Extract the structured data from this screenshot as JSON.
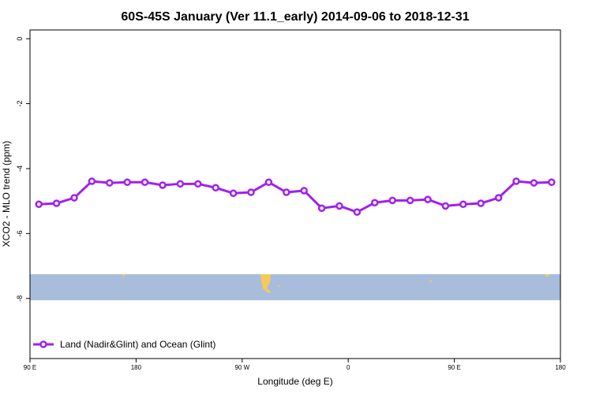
{
  "chart_data": {
    "type": "line",
    "title": "60S-45S January (Ver 11.1_early)   2014-09-06 to 2018-12-31",
    "x_label": "Longitude (deg E)",
    "y_label": "XCO2 - MLO trend (ppm)",
    "x": [
      97.5,
      112.5,
      127.5,
      142.5,
      157.5,
      172.5,
      187.5,
      202.5,
      217.5,
      232.5,
      247.5,
      262.5,
      277.5,
      292.5,
      307.5,
      322.5,
      337.5,
      352.5,
      367.5,
      382.5,
      397.5,
      412.5,
      427.5,
      442.5,
      457.5,
      472.5,
      487.5,
      502.5,
      517.5,
      532.5
    ],
    "series": [
      {
        "name": "Land (Nadir&Glint) and Ocean (Glint)",
        "color": "#a020f0",
        "values": [
          -5.1,
          -5.07,
          -4.9,
          -4.39,
          -4.44,
          -4.42,
          -4.42,
          -4.51,
          -4.47,
          -4.47,
          -4.59,
          -4.76,
          -4.73,
          -4.42,
          -4.73,
          -4.68,
          -5.22,
          -5.15,
          -5.34,
          -5.05,
          -4.98,
          -4.98,
          -4.95,
          -5.15,
          -5.1,
          -5.07,
          -4.9,
          -4.39,
          -4.44,
          -4.42
        ]
      }
    ],
    "xlim": [
      90,
      540
    ],
    "xticks": [
      {
        "value": 90,
        "label": "90 E"
      },
      {
        "value": 180,
        "label": "180"
      },
      {
        "value": 270,
        "label": "90 W"
      },
      {
        "value": 360,
        "label": "0"
      },
      {
        "value": 450,
        "label": "90 E"
      },
      {
        "value": 540,
        "label": "180"
      }
    ],
    "ylim": [
      -9.85,
      0.27
    ],
    "yticks": [
      0,
      -2,
      -4,
      -6,
      -8
    ],
    "legend": "bottom-left"
  }
}
